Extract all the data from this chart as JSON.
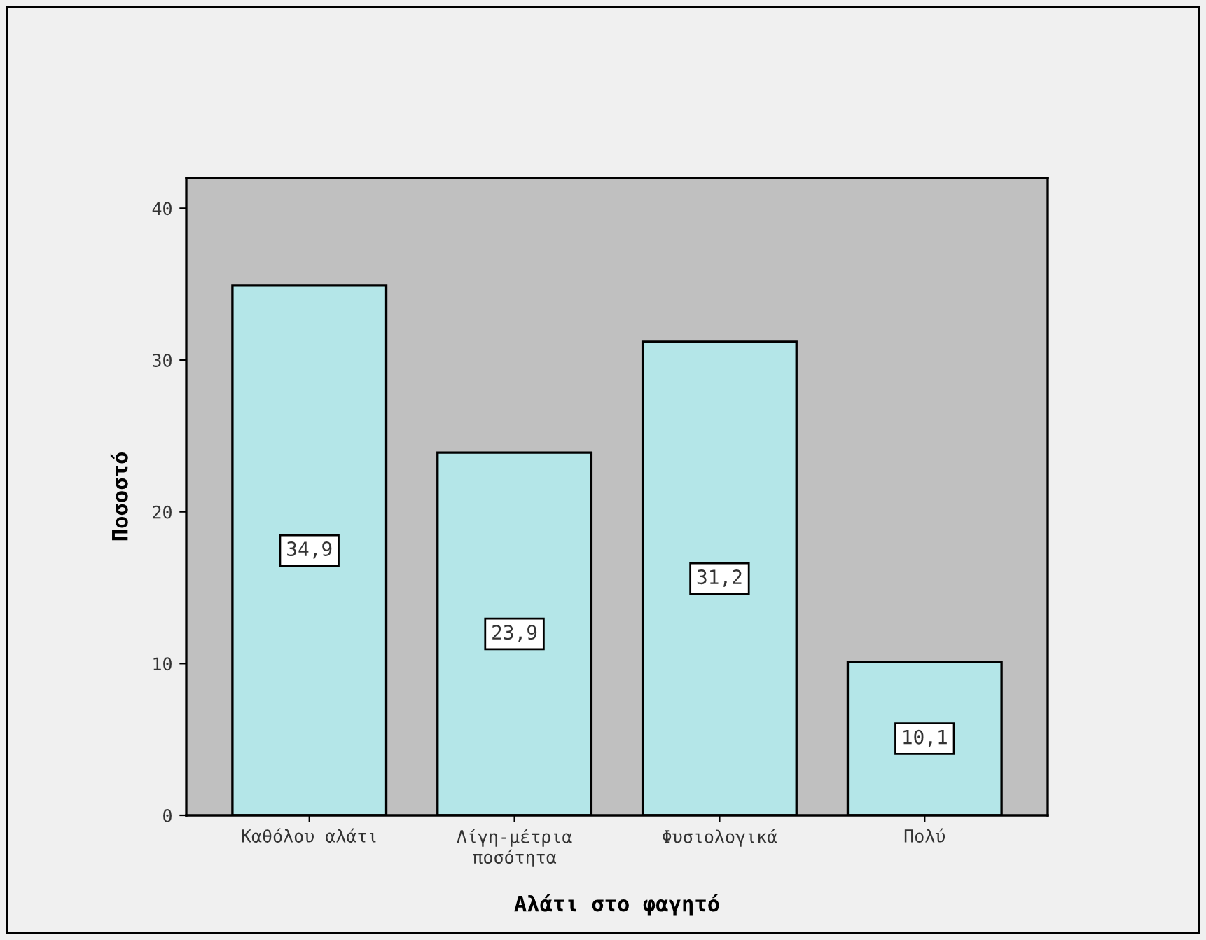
{
  "chart_data": {
    "type": "bar",
    "xlabel": "Αλάτι στο φαγητό",
    "ylabel": "Ποσοστό",
    "categories": [
      "Καθόλου αλάτι",
      "Λίγη-μέτρια\nποσότητα",
      "Φυσιολογικά",
      "Πολύ"
    ],
    "values": [
      34.9,
      23.9,
      31.2,
      10.1
    ],
    "color": "#b4e6e8",
    "value_labels": [
      "34,9",
      "23,9",
      "31,2",
      "10,1"
    ],
    "ylim": [
      0,
      42
    ],
    "yticks": [
      0,
      10,
      20,
      30,
      40
    ],
    "grid": false,
    "legend": false
  }
}
